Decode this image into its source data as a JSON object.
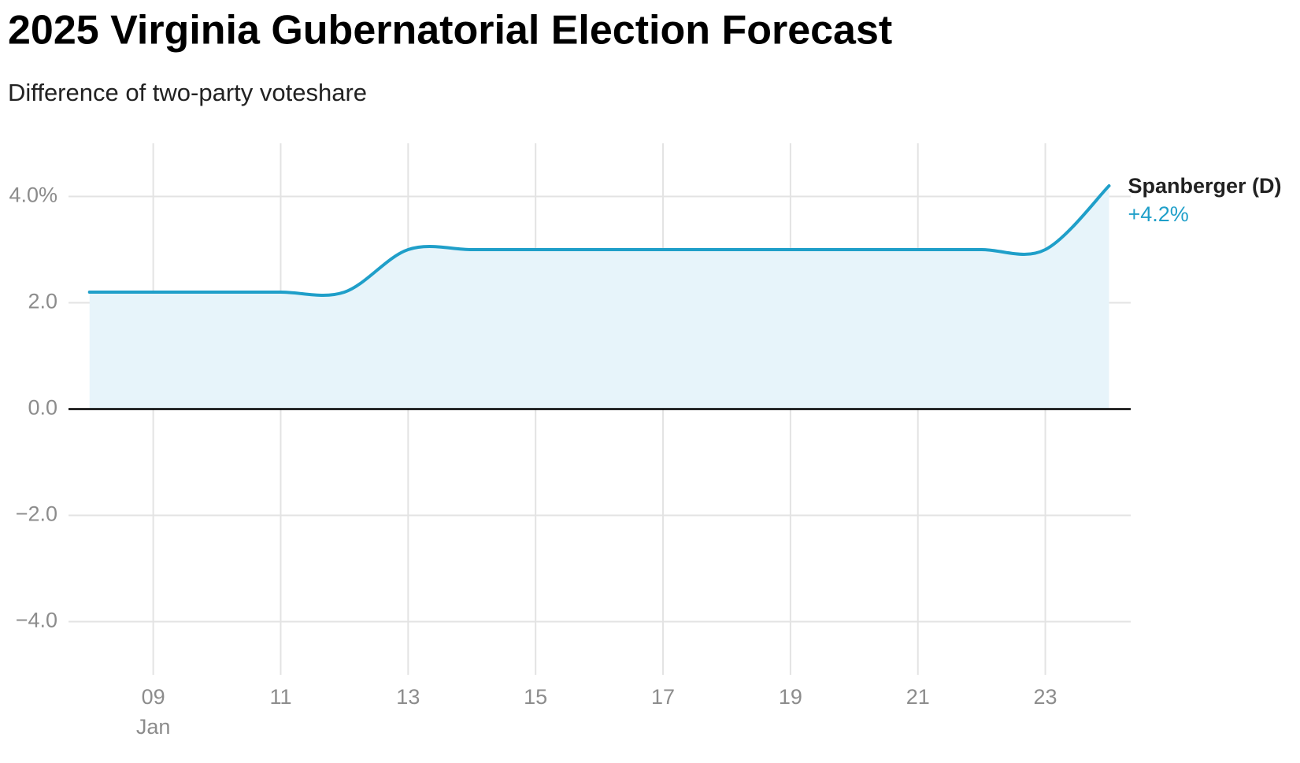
{
  "chart_data": {
    "type": "line",
    "title": "2025 Virginia Gubernatorial Election Forecast",
    "subtitle": "Difference of two-party voteshare",
    "x": [
      8,
      9,
      10,
      11,
      12,
      13,
      14,
      15,
      16,
      17,
      18,
      19,
      20,
      21,
      22,
      23,
      24
    ],
    "x_month_label": "Jan",
    "series": [
      {
        "name": "Spanberger (D)",
        "color": "#1f9fc9",
        "values": [
          2.2,
          2.2,
          2.2,
          2.2,
          2.2,
          3.0,
          3.0,
          3.0,
          3.0,
          3.0,
          3.0,
          3.0,
          3.0,
          3.0,
          3.0,
          3.0,
          4.2
        ],
        "value_labels": [
          null,
          null,
          null,
          null,
          null,
          null,
          null,
          null,
          null,
          null,
          null,
          null,
          null,
          null,
          null,
          null,
          "+4.2%"
        ]
      }
    ],
    "xlim": [
      7.67,
      24.34
    ],
    "xticks": [
      {
        "value": 9,
        "label": "09"
      },
      {
        "value": 11,
        "label": "11"
      },
      {
        "value": 13,
        "label": "13"
      },
      {
        "value": 15,
        "label": "15"
      },
      {
        "value": 17,
        "label": "17"
      },
      {
        "value": 19,
        "label": "19"
      },
      {
        "value": 21,
        "label": "21"
      },
      {
        "value": 23,
        "label": "23"
      }
    ],
    "ylim": [
      -5,
      5
    ],
    "yticks": [
      {
        "value": -4,
        "label": "−4.0"
      },
      {
        "value": -2,
        "label": "−2.0"
      },
      {
        "value": 0,
        "label": "0.0"
      },
      {
        "value": 2,
        "label": "2.0"
      },
      {
        "value": 4,
        "label": "4.0%"
      }
    ],
    "grid": true,
    "area_fill": "#e7f4fa"
  }
}
